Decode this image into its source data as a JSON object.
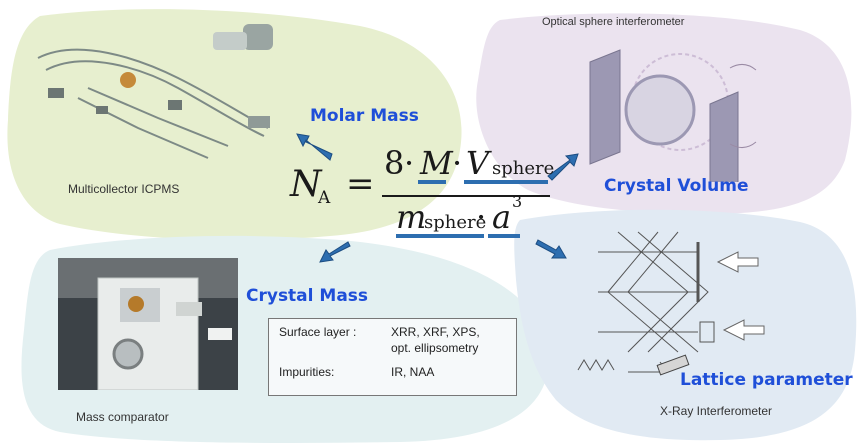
{
  "regions": {
    "molar": {
      "caption": "Multicollector ICPMS",
      "label": "Molar Mass",
      "color": "#e7efcf"
    },
    "volume": {
      "caption": "Optical sphere interferometer",
      "label": "Crystal Volume",
      "color": "#ebe3ef"
    },
    "mass": {
      "caption": "Mass comparator",
      "label": "Crystal Mass",
      "color": "#e3f0f1"
    },
    "lattice": {
      "caption": "X-Ray Interferometer",
      "label": "Lattice parameter",
      "color": "#e1eaf3"
    }
  },
  "formula": {
    "lhs_symbol": "N",
    "lhs_subscript": "A",
    "equals": "=",
    "num_coeff": "8",
    "dot": "·",
    "num_m": "M",
    "num_v": "V",
    "num_v_sub": "sphere",
    "den_m": "m",
    "den_m_sub": "sphere",
    "den_a": "a",
    "den_a_exp": "3"
  },
  "methods_table": {
    "rows": [
      {
        "key": "Surface layer :",
        "value_line1": "XRR, XRF, XPS,",
        "value_line2": "opt. ellipsometry"
      },
      {
        "key": "Impurities:",
        "value_line1": "IR, NAA",
        "value_line2": ""
      }
    ]
  },
  "colors": {
    "accent_label": "#1f4fd8",
    "arrow": "#2d6eb0"
  }
}
